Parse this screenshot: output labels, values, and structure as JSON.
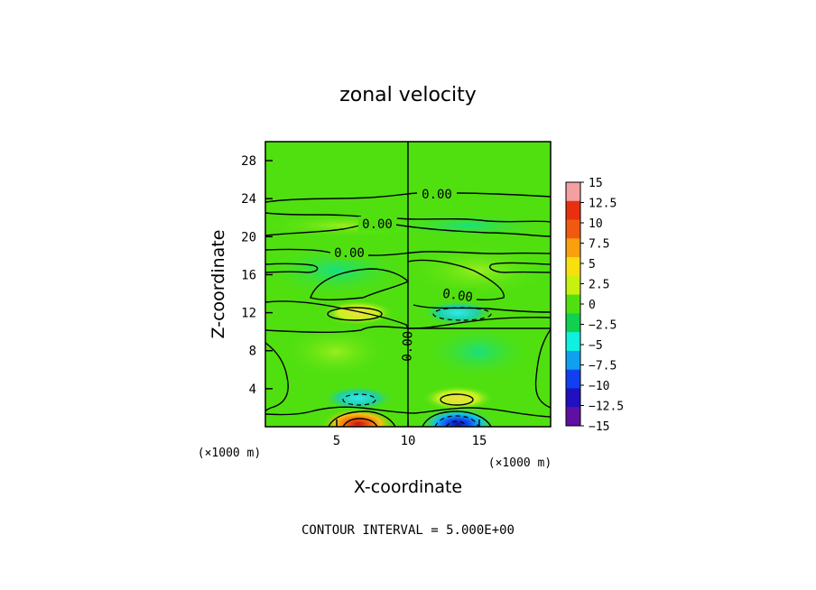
{
  "chart_data": {
    "type": "heatmap",
    "title": "zonal velocity",
    "xlabel": "X-coordinate",
    "ylabel": "Z-coordinate",
    "x_unit": "(×1000 m)",
    "z_unit": "(×1000 m)",
    "xlim": [
      0,
      20
    ],
    "ylim": [
      0,
      30
    ],
    "x_ticks": [
      5,
      10,
      15
    ],
    "y_ticks": [
      4,
      8,
      12,
      16,
      20,
      24,
      28
    ],
    "colorbar": {
      "levels": [
        15,
        12.5,
        10,
        7.5,
        5,
        2.5,
        0,
        -2.5,
        -5,
        -7.5,
        -10,
        -12.5,
        -15
      ],
      "colors": [
        "#f4a0a0",
        "#e83010",
        "#f05a10",
        "#f8a010",
        "#f8e010",
        "#c8f010",
        "#50e010",
        "#10d050",
        "#10f0e0",
        "#10a0f0",
        "#1040f0",
        "#2010c0",
        "#6010a0"
      ]
    },
    "contour_labels": [
      "0.00",
      "0.00",
      "0.00",
      "0.00",
      "0.00"
    ],
    "features": [
      {
        "x": 6.5,
        "z": 12.0,
        "sign": "positive",
        "peak": 5
      },
      {
        "x": 13.5,
        "z": 12.0,
        "sign": "negative",
        "peak": -5
      },
      {
        "x": 6.5,
        "z": 3.0,
        "sign": "negative",
        "peak": -5
      },
      {
        "x": 13.5,
        "z": 3.0,
        "sign": "positive",
        "peak": 5
      },
      {
        "x": 6.5,
        "z": 0.3,
        "sign": "positive",
        "peak": 12.5
      },
      {
        "x": 13.5,
        "z": 0.3,
        "sign": "negative",
        "peak": -12.5
      }
    ],
    "grid": false,
    "legend": "right"
  },
  "footer": {
    "contour_interval": "CONTOUR INTERVAL = 5.000E+00"
  }
}
